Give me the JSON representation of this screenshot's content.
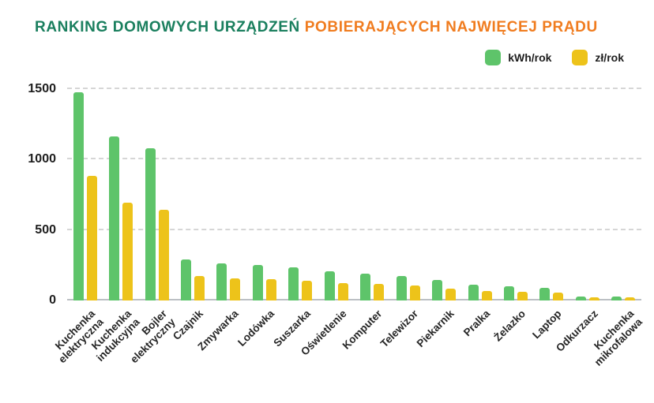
{
  "title": {
    "part1": "RANKING DOMOWYCH URZĄDZEŃ",
    "part2": "POBIERAJĄCYCH NAJWIĘCEJ PRĄDU",
    "part1_color": "#1a7f5e",
    "part2_color": "#f07c1f"
  },
  "legend": [
    {
      "label": "kWh/rok",
      "color": "#5ec46a"
    },
    {
      "label": "zł/rok",
      "color": "#edc31a"
    }
  ],
  "chart_data": {
    "type": "bar",
    "title": "RANKING DOMOWYCH URZĄDZEŃ POBIERAJĄCYCH NAJWIĘCEJ PRĄDU",
    "xlabel": "",
    "ylabel": "",
    "ylim": [
      0,
      1500
    ],
    "yticks": [
      0,
      500,
      1000,
      1500
    ],
    "grid": "dashed-horizontal",
    "legend_position": "top-right",
    "categories": [
      "Kuchenka\nelektryczna",
      "Kuchenka\nindukcyjna",
      "Bojler elektryczny",
      "Czajnik",
      "Zmywarka",
      "Lodówka",
      "Suszarka",
      "Oświetlenie",
      "Komputer",
      "Telewizor",
      "Piekarnik",
      "Pralka",
      "Żelazko",
      "Laptop",
      "Odkurzacz",
      "Kuchenka\nmikrofalowa"
    ],
    "series": [
      {
        "name": "kWh/rok",
        "color": "#5ec46a",
        "values": [
          1475,
          1165,
          1080,
          290,
          265,
          250,
          235,
          205,
          190,
          175,
          145,
          110,
          100,
          90,
          30,
          30
        ]
      },
      {
        "name": "zł/rok",
        "color": "#edc31a",
        "values": [
          885,
          695,
          645,
          175,
          155,
          150,
          140,
          125,
          115,
          105,
          85,
          65,
          60,
          55,
          20,
          20
        ]
      }
    ]
  }
}
